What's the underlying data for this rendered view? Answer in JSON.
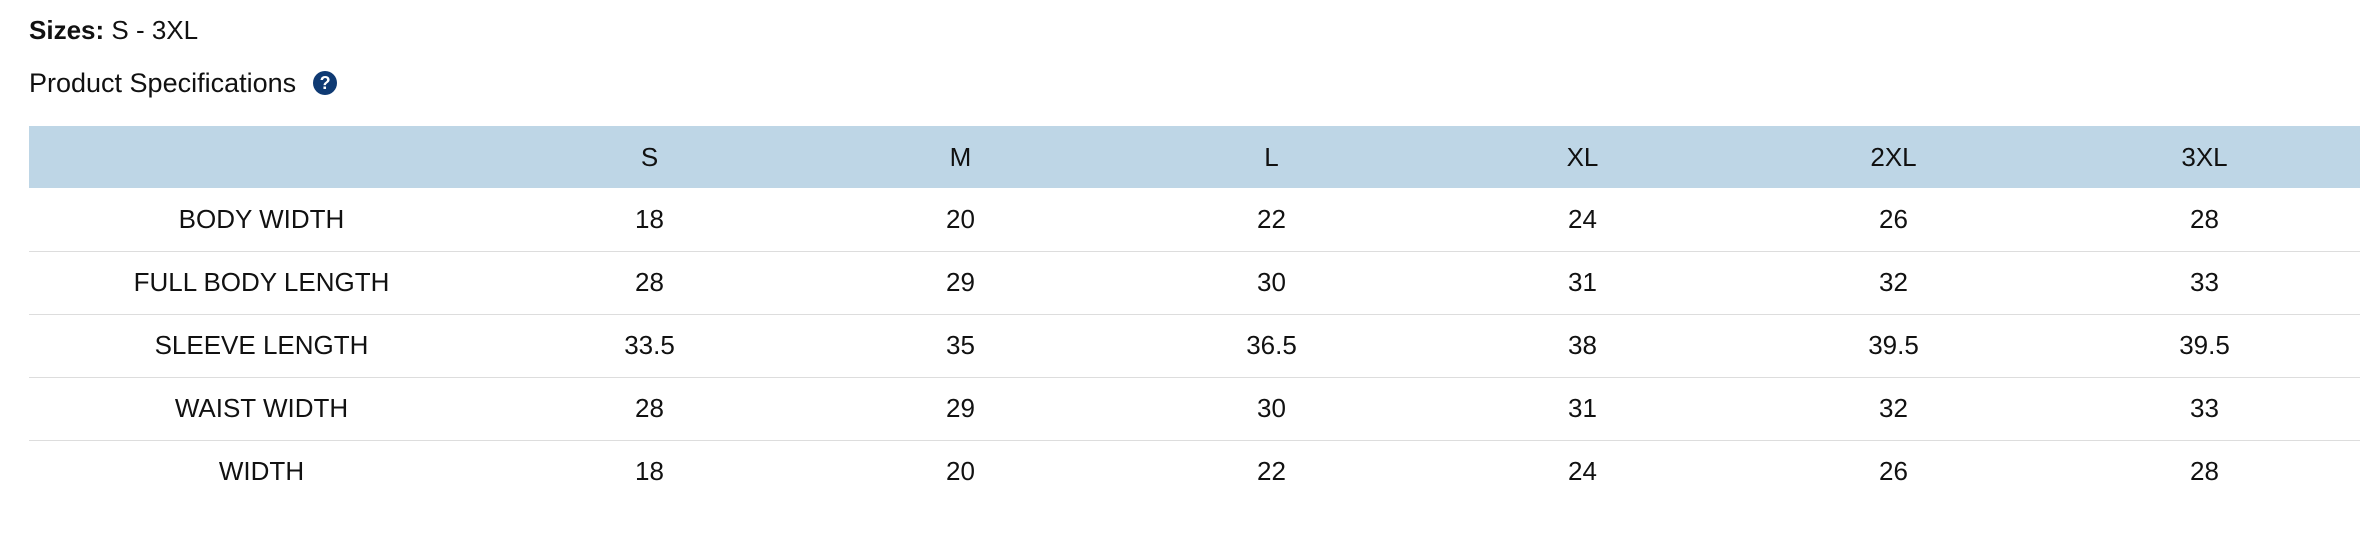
{
  "sizes": {
    "label": "Sizes:",
    "value": "S - 3XL"
  },
  "specs": {
    "title": "Product Specifications",
    "help_icon": "question-circle-icon"
  },
  "colors": {
    "header_bg": "#bed6e6",
    "help_icon": "#0f3a73"
  },
  "table": {
    "columns": [
      "",
      "S",
      "M",
      "L",
      "XL",
      "2XL",
      "3XL"
    ],
    "rows": [
      {
        "label": "BODY WIDTH",
        "values": [
          "18",
          "20",
          "22",
          "24",
          "26",
          "28"
        ]
      },
      {
        "label": "FULL BODY LENGTH",
        "values": [
          "28",
          "29",
          "30",
          "31",
          "32",
          "33"
        ]
      },
      {
        "label": "SLEEVE LENGTH",
        "values": [
          "33.5",
          "35",
          "36.5",
          "38",
          "39.5",
          "39.5"
        ]
      },
      {
        "label": "WAIST WIDTH",
        "values": [
          "28",
          "29",
          "30",
          "31",
          "32",
          "33"
        ]
      },
      {
        "label": "WIDTH",
        "values": [
          "18",
          "20",
          "22",
          "24",
          "26",
          "28"
        ]
      }
    ]
  }
}
